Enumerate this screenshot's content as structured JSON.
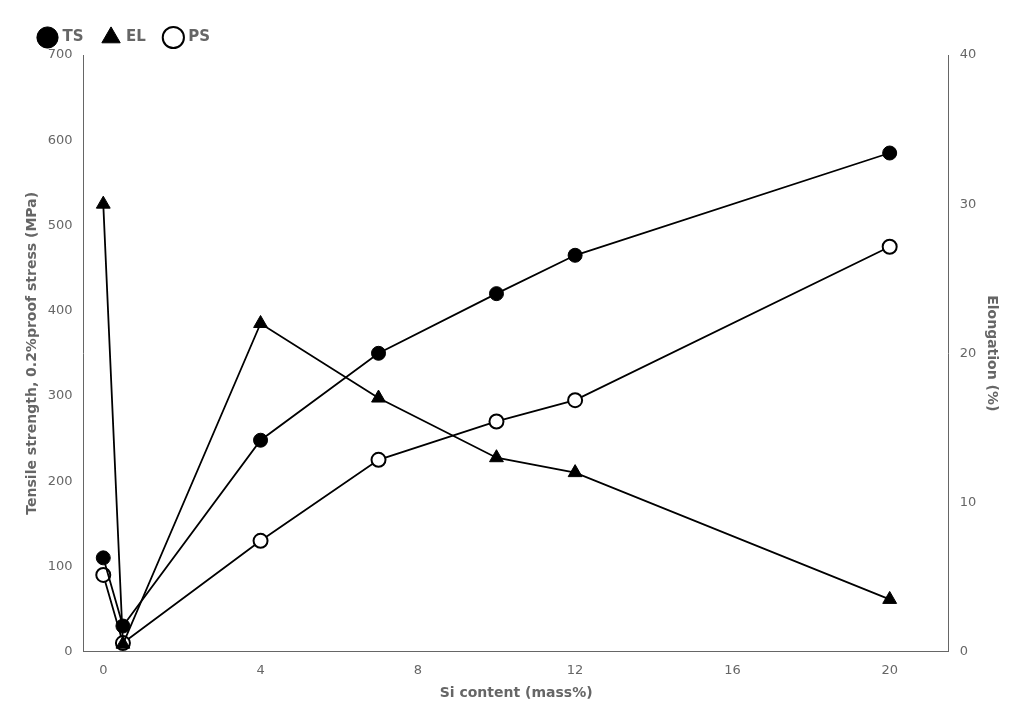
{
  "chart_data": {
    "type": "line",
    "x": [
      0,
      0.5,
      4,
      7,
      10,
      12,
      20
    ],
    "xlabel": "Si content (mass%)",
    "ylabel": "Tensile strength, 0.2%proof stress (MPa)",
    "y2label": "Elongation (%)",
    "xlim": [
      -0.5,
      21.5
    ],
    "ylim": [
      0,
      700
    ],
    "y2lim": [
      0,
      40
    ],
    "xticks": [
      0,
      4,
      8,
      12,
      16,
      20
    ],
    "yticks": [
      0,
      100,
      200,
      300,
      400,
      500,
      600,
      700
    ],
    "y2ticks": [
      0,
      10,
      20,
      30,
      40
    ],
    "grid": false,
    "legend": "upper left",
    "series": [
      {
        "name": "TS",
        "color": "#000000",
        "marker": "circle",
        "values": [
          110,
          30,
          248,
          350,
          420,
          465,
          585
        ]
      },
      {
        "name": "EL",
        "color": "#000000",
        "marker": "triangle",
        "axis": "y2",
        "values": [
          30,
          0.5,
          22,
          17,
          13,
          12,
          3.5
        ]
      },
      {
        "name": "PS",
        "color": "#000000",
        "marker": "open_circle",
        "values": [
          90,
          10,
          130,
          225,
          270,
          295,
          475
        ]
      }
    ]
  }
}
